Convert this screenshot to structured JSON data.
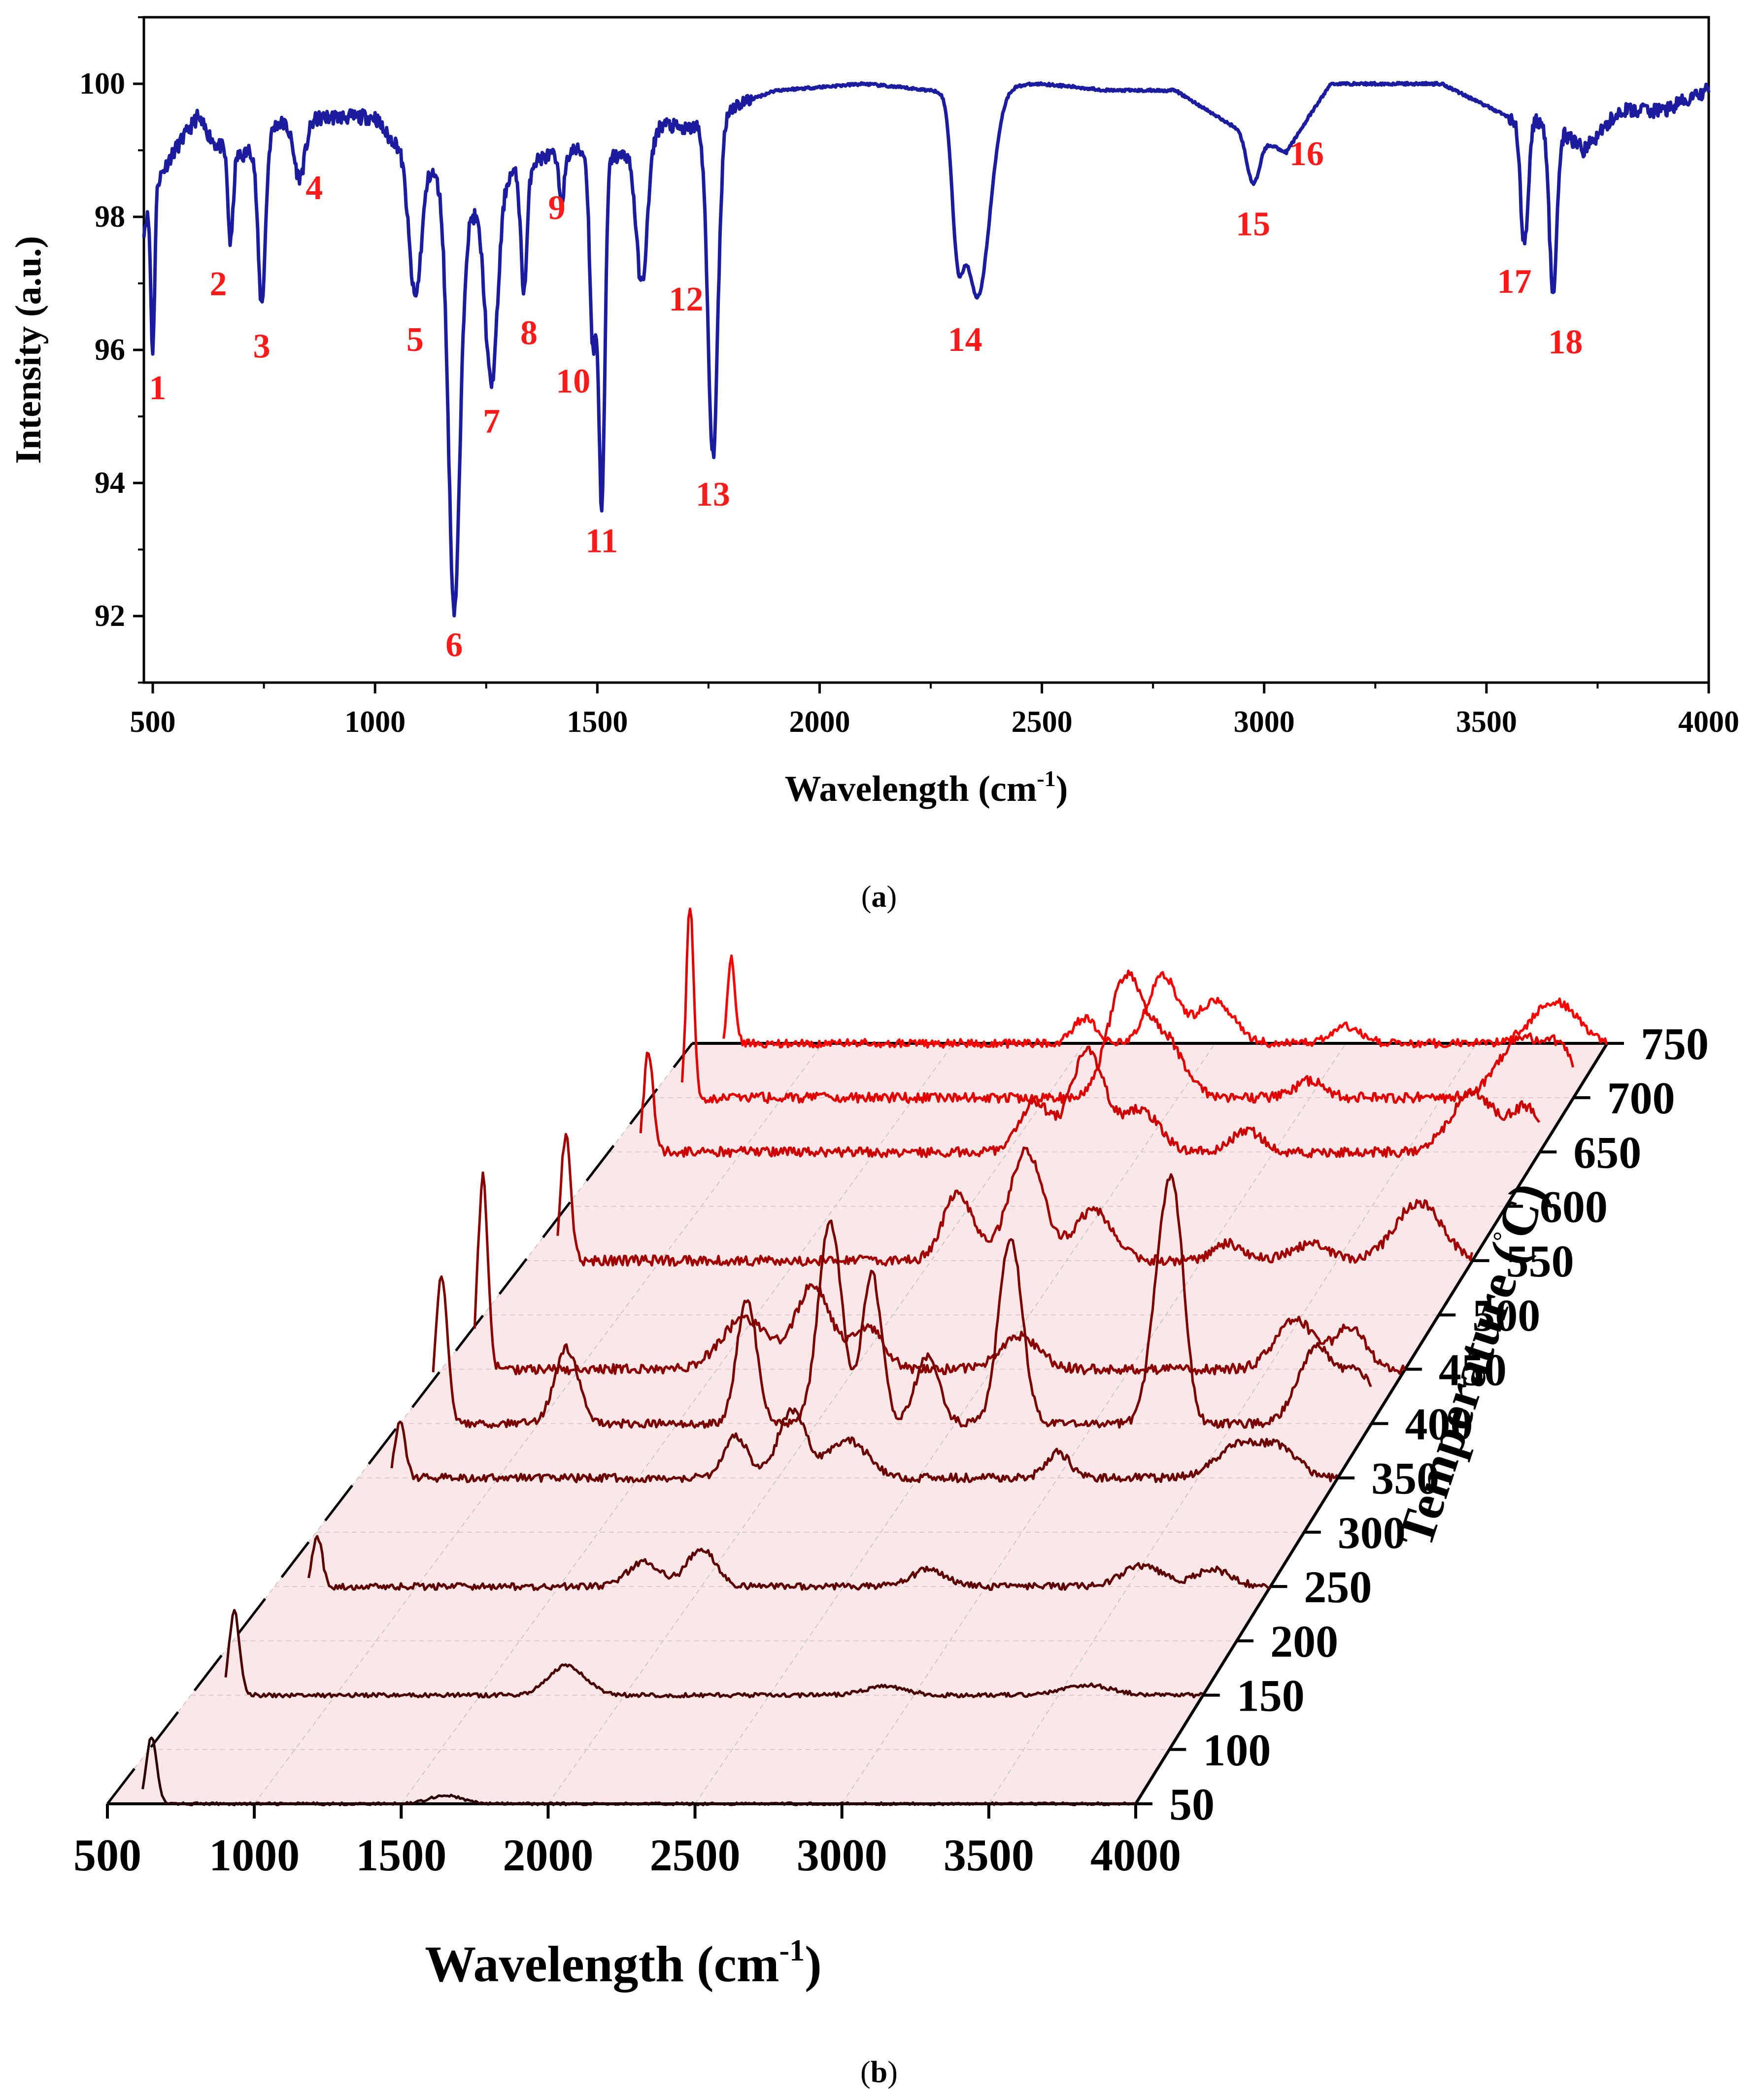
{
  "chart_data": [
    {
      "id": "a",
      "type": "line",
      "caption": "a",
      "title": "",
      "xlabel": "Wavelength (cm",
      "xlabel_sup": "-1",
      "xlabel_close": ")",
      "ylabel": "Intensity (a.u.)",
      "xlim": [
        480,
        4000
      ],
      "ylim": [
        91,
        101
      ],
      "x_ticks": [
        500,
        1000,
        1500,
        2000,
        2500,
        3000,
        3500,
        4000
      ],
      "y_ticks": [
        92,
        94,
        96,
        98,
        100
      ],
      "line_color": "#1c1ca0",
      "label_color": "#ff1a1a",
      "baseline": [
        [
          480,
          97.8
        ],
        [
          500,
          98.4
        ],
        [
          540,
          98.9
        ],
        [
          600,
          99.5
        ],
        [
          640,
          99.1
        ],
        [
          700,
          98.9
        ],
        [
          780,
          99.4
        ],
        [
          900,
          99.5
        ],
        [
          1000,
          99.5
        ],
        [
          1030,
          99.2
        ],
        [
          1120,
          98.8
        ],
        [
          1200,
          97.9
        ],
        [
          1290,
          98.6
        ],
        [
          1380,
          98.9
        ],
        [
          1450,
          99.0
        ],
        [
          1550,
          98.9
        ],
        [
          1650,
          99.4
        ],
        [
          1700,
          99.3
        ],
        [
          1820,
          99.7
        ],
        [
          1900,
          99.9
        ],
        [
          2100,
          100.0
        ],
        [
          2250,
          99.9
        ],
        [
          2500,
          100.0
        ],
        [
          2650,
          99.9
        ],
        [
          2800,
          99.9
        ],
        [
          2920,
          99.4
        ],
        [
          3050,
          99.0
        ],
        [
          3150,
          100.0
        ],
        [
          3400,
          100.0
        ],
        [
          3550,
          99.5
        ],
        [
          3650,
          99.4
        ],
        [
          3720,
          99.0
        ],
        [
          3800,
          99.6
        ],
        [
          3900,
          99.6
        ],
        [
          4000,
          99.9
        ]
      ],
      "peaks": [
        {
          "label": "1",
          "x": 500,
          "y": 96.0
        },
        {
          "label": "2",
          "x": 675,
          "y": 97.6
        },
        {
          "label": "3",
          "x": 745,
          "y": 96.7
        },
        {
          "label": "4",
          "x": 830,
          "y": 98.6
        },
        {
          "label": "5",
          "x": 1090,
          "y": 96.8
        },
        {
          "label": "6",
          "x": 1178,
          "y": 92.1
        },
        {
          "label": "7",
          "x": 1262,
          "y": 95.5
        },
        {
          "label": "8",
          "x": 1335,
          "y": 96.9
        },
        {
          "label": "9",
          "x": 1420,
          "y": 98.3
        },
        {
          "label": "10",
          "x": 1490,
          "y": 96.1
        },
        {
          "label": "11",
          "x": 1510,
          "y": 93.7
        },
        {
          "label": "12",
          "x": 1600,
          "y": 97.0
        },
        {
          "label": "13",
          "x": 1760,
          "y": 94.4
        },
        {
          "label": "14",
          "x": 2355,
          "y": 96.8
        },
        {
          "label": "15",
          "x": 2975,
          "y": 98.5
        },
        {
          "label": "16",
          "x": 3040,
          "y": 99.0
        },
        {
          "label": "17",
          "x": 3585,
          "y": 97.6
        },
        {
          "label": "18",
          "x": 3650,
          "y": 96.8
        }
      ]
    },
    {
      "id": "b",
      "type": "line",
      "subtype": "3d-waterfall",
      "caption": "b",
      "title": "",
      "xlabel": "Wavelength (cm",
      "xlabel_sup": "-1",
      "xlabel_close": ")",
      "zlabel": "Temperature (",
      "zlabel_unit": "C)",
      "xlim": [
        500,
        4000
      ],
      "x_ticks": [
        500,
        1000,
        1500,
        2000,
        2500,
        3000,
        3500,
        4000
      ],
      "temperatures": [
        50,
        100,
        150,
        200,
        250,
        300,
        350,
        400,
        450,
        500,
        550,
        600,
        650,
        700,
        750
      ],
      "series": [
        {
          "name": "50",
          "color": "#2b0000",
          "peaks": [
            [
              650,
              0.8,
              25
            ],
            [
              1650,
              0.1,
              80
            ]
          ],
          "noise": 0.03
        },
        {
          "name": "150",
          "color": "#4a0000",
          "peaks": [
            [
              650,
              1.0,
              25
            ],
            [
              1800,
              0.35,
              90
            ],
            [
              2900,
              0.1,
              100
            ],
            [
              3600,
              0.12,
              120
            ]
          ],
          "noise": 0.05
        },
        {
          "name": "250",
          "color": "#5e0000",
          "peaks": [
            [
              650,
              0.6,
              25
            ],
            [
              1800,
              0.3,
              80
            ],
            [
              2000,
              0.45,
              70
            ],
            [
              2800,
              0.2,
              90
            ],
            [
              3550,
              0.25,
              100
            ],
            [
              3800,
              0.2,
              90
            ]
          ],
          "noise": 0.08
        },
        {
          "name": "350",
          "color": "#6a0000",
          "peaks": [
            [
              650,
              0.7,
              25
            ],
            [
              1850,
              0.5,
              60
            ],
            [
              2050,
              0.8,
              70
            ],
            [
              2250,
              0.45,
              100
            ],
            [
              3000,
              0.3,
              60
            ],
            [
              3650,
              0.4,
              120
            ],
            [
              3800,
              0.3,
              90
            ]
          ],
          "noise": 0.1
        },
        {
          "name": "400",
          "color": "#7a0000",
          "peaks": [
            [
              650,
              1.8,
              30
            ],
            [
              1100,
              0.9,
              60
            ],
            [
              1750,
              1.5,
              50
            ],
            [
              2050,
              2.4,
              60
            ],
            [
              2200,
              1.8,
              50
            ],
            [
              2400,
              0.8,
              60
            ],
            [
              2700,
              2.2,
              60
            ],
            [
              3250,
              2.0,
              60
            ],
            [
              3300,
              1.6,
              50
            ],
            [
              3800,
              0.9,
              90
            ],
            [
              3950,
              0.6,
              80
            ]
          ],
          "noise": 0.1
        },
        {
          "name": "450",
          "color": "#8a0000",
          "peaks": [
            [
              650,
              2.3,
              25
            ],
            [
              1600,
              0.6,
              120
            ],
            [
              1850,
              1.0,
              90
            ],
            [
              2050,
              0.5,
              80
            ],
            [
              2600,
              0.4,
              100
            ],
            [
              3600,
              0.6,
              100
            ],
            [
              3800,
              0.5,
              80
            ]
          ],
          "noise": 0.12
        },
        {
          "name": "550",
          "color": "#a10000",
          "peaks": [
            [
              650,
              1.5,
              25
            ],
            [
              2100,
              0.8,
              80
            ],
            [
              2350,
              1.3,
              90
            ],
            [
              2600,
              0.6,
              100
            ],
            [
              3100,
              0.2,
              80
            ],
            [
              3400,
              0.2,
              100
            ],
            [
              3800,
              0.7,
              120
            ]
          ],
          "noise": 0.12
        },
        {
          "name": "650",
          "color": "#cc0000",
          "peaks": [
            [
              650,
              1.2,
              25
            ],
            [
              2100,
              0.6,
              80
            ],
            [
              2300,
              1.2,
              90
            ],
            [
              2500,
              0.5,
              100
            ],
            [
              2900,
              0.25,
              80
            ],
            [
              3750,
              0.7,
              120
            ],
            [
              3950,
              0.5,
              80
            ]
          ],
          "noise": 0.12
        },
        {
          "name": "700",
          "color": "#e00000",
          "peaks": [
            [
              650,
              2.3,
              20
            ],
            [
              2300,
              1.4,
              90
            ],
            [
              2450,
              0.7,
              100
            ],
            [
              3000,
              0.2,
              80
            ],
            [
              3800,
              0.7,
              120
            ],
            [
              3950,
              0.5,
              80
            ]
          ],
          "noise": 0.12
        },
        {
          "name": "750",
          "color": "#ff0000",
          "peaks": [
            [
              650,
              1.0,
              20
            ],
            [
              2000,
              0.3,
              60
            ],
            [
              2300,
              0.8,
              80
            ],
            [
              2500,
              0.5,
              100
            ],
            [
              3000,
              0.2,
              80
            ],
            [
              3800,
              0.5,
              120
            ]
          ],
          "noise": 0.1
        }
      ]
    }
  ]
}
